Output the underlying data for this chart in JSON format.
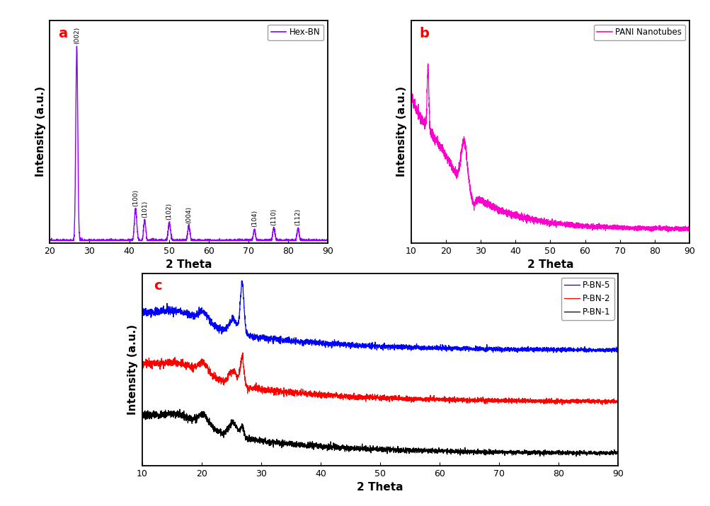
{
  "panel_a": {
    "label": "Hex-BN",
    "color": "#8B00FF",
    "xlim": [
      20,
      90
    ],
    "xlabel": "2 Theta",
    "ylabel": "Intensity (a.u.)",
    "panel_letter": "a",
    "peaks": {
      "(002)": 26.8,
      "(100)": 41.6,
      "(101)": 43.9,
      "(102)": 50.1,
      "(004)": 55.0,
      "(104)": 71.5,
      "(110)": 76.4,
      "(112)": 82.5
    },
    "peak_heights": {
      "(002)": 0.95,
      "(100)": 0.155,
      "(101)": 0.1,
      "(102)": 0.088,
      "(004)": 0.072,
      "(104)": 0.055,
      "(110)": 0.062,
      "(112)": 0.06
    },
    "peak_widths": {
      "(002)": 0.25,
      "(100)": 0.3,
      "(101)": 0.28,
      "(102)": 0.3,
      "(004)": 0.28,
      "(104)": 0.28,
      "(110)": 0.28,
      "(112)": 0.28
    }
  },
  "panel_b": {
    "label": "PANI Nanotubes",
    "color": "#FF00CC",
    "xlim": [
      10,
      90
    ],
    "xlabel": "2 Theta",
    "ylabel": "Intensity (a.u.)",
    "panel_letter": "b"
  },
  "panel_c": {
    "labels": [
      "P-BN-5",
      "P-BN-2",
      "P-BN-1"
    ],
    "colors": [
      "#0000FF",
      "#FF0000",
      "#000000"
    ],
    "xlim": [
      10,
      90
    ],
    "xlabel": "2 Theta",
    "ylabel": "Intensity (a.u.)",
    "panel_letter": "c"
  },
  "xticks_a": [
    20,
    30,
    40,
    50,
    60,
    70,
    80,
    90
  ],
  "xticks_bc": [
    10,
    20,
    30,
    40,
    50,
    60,
    70,
    80,
    90
  ],
  "font_size_label": 11,
  "font_size_tick": 9,
  "font_size_letter": 14
}
